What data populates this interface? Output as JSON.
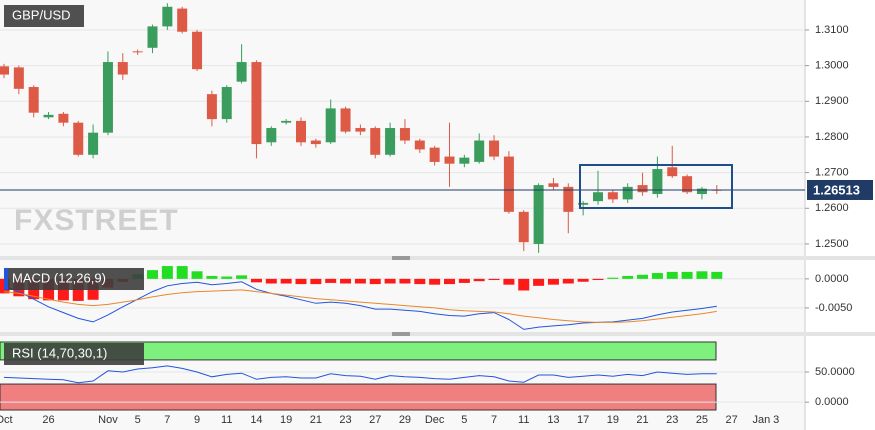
{
  "chart_data": [
    {
      "type": "candlestick",
      "title": "GBP/USD",
      "watermark": "FXSTREET",
      "categories": [
        "Oct",
        null,
        null,
        "26",
        null,
        null,
        null,
        "Nov",
        null,
        "5",
        null,
        "7",
        null,
        "9",
        null,
        "11",
        null,
        "14",
        null,
        "19",
        null,
        "21",
        null,
        "23",
        null,
        "27",
        null,
        "29",
        null,
        "Dec",
        null,
        "5",
        null,
        "7",
        null,
        "11",
        null,
        "13",
        null,
        "17",
        null,
        "19",
        null,
        "21",
        null,
        "23",
        null,
        "25",
        null,
        "27",
        null,
        "Jan",
        "3"
      ],
      "open": [
        1.2998,
        1.2995,
        1.294,
        1.2855,
        1.2865,
        1.284,
        1.275,
        1.2812,
        1.301,
        1.304,
        1.305,
        1.311,
        1.316,
        1.3095,
        1.292,
        1.285,
        1.2955,
        1.301,
        1.2785,
        1.284,
        1.2845,
        1.279,
        1.2785,
        1.288,
        1.2825,
        1.2825,
        1.275,
        1.2825,
        1.279,
        1.277,
        1.2745,
        1.2725,
        1.273,
        1.279,
        1.2745,
        1.259,
        1.25,
        1.267,
        1.266,
        1.261,
        1.262,
        1.2645,
        1.2625,
        1.2665,
        1.264,
        1.2715,
        1.269,
        1.264,
        1.2652,
        null,
        null,
        null,
        null
      ],
      "high": [
        1.3005,
        1.3,
        1.2945,
        1.287,
        1.287,
        1.2845,
        1.2835,
        1.304,
        1.3035,
        1.3045,
        1.3115,
        1.3175,
        1.3165,
        1.31,
        1.293,
        1.2945,
        1.306,
        1.3015,
        1.283,
        1.285,
        1.2855,
        1.2795,
        1.2905,
        1.2885,
        1.2835,
        1.283,
        1.284,
        1.285,
        1.2795,
        1.2775,
        1.284,
        1.275,
        1.281,
        1.2805,
        1.276,
        1.2595,
        1.267,
        1.2685,
        1.267,
        1.262,
        1.2705,
        1.265,
        1.267,
        1.27,
        1.2745,
        1.2775,
        1.2695,
        1.266,
        1.2665,
        null,
        null,
        null,
        null
      ],
      "low": [
        1.2965,
        1.292,
        1.2855,
        1.285,
        1.283,
        1.2745,
        1.274,
        1.2805,
        1.296,
        1.303,
        1.3035,
        1.31,
        1.309,
        1.2985,
        1.283,
        1.284,
        1.295,
        1.274,
        1.2775,
        1.2835,
        1.2775,
        1.277,
        1.278,
        1.281,
        1.2805,
        1.274,
        1.2745,
        1.278,
        1.2755,
        1.272,
        1.266,
        1.2715,
        1.2725,
        1.2735,
        1.2585,
        1.248,
        1.2475,
        1.265,
        1.253,
        1.258,
        1.261,
        1.2615,
        1.2615,
        1.2635,
        1.263,
        1.2685,
        1.264,
        1.2625,
        1.264,
        null,
        null,
        null,
        null
      ],
      "close": [
        1.2975,
        1.2935,
        1.2868,
        1.2862,
        1.284,
        1.275,
        1.2812,
        1.301,
        1.2975,
        1.3038,
        1.311,
        1.3165,
        1.3095,
        1.299,
        1.285,
        1.294,
        1.301,
        1.278,
        1.2825,
        1.2845,
        1.2785,
        1.278,
        1.288,
        1.2815,
        1.2815,
        1.275,
        1.2825,
        1.279,
        1.2765,
        1.273,
        1.2725,
        1.2742,
        1.279,
        1.2745,
        1.259,
        1.2505,
        1.2665,
        1.266,
        1.259,
        1.2615,
        1.2645,
        1.2625,
        1.266,
        1.2645,
        1.271,
        1.269,
        1.2645,
        1.2655,
        1.2651,
        null,
        null,
        null,
        null
      ],
      "up_color": "#3a9d5d",
      "down_color": "#dd5a47",
      "ylim": [
        1.2469,
        1.3184
      ],
      "yticks": [
        {
          "value": 1.31,
          "label": "1.3100"
        },
        {
          "value": 1.3,
          "label": "1.3000"
        },
        {
          "value": 1.29,
          "label": "1.2900"
        },
        {
          "value": 1.28,
          "label": "1.2800"
        },
        {
          "value": 1.27,
          "label": "1.2700"
        },
        {
          "value": 1.26,
          "label": "1.2600"
        },
        {
          "value": 1.25,
          "label": "1.2500"
        }
      ],
      "last_price": {
        "value": 1.26513,
        "label": "1.26513"
      }
    },
    {
      "type": "macd",
      "title": "MACD (12,26,9)",
      "histogram": [
        -0.0025,
        -0.003,
        -0.0035,
        -0.0037,
        -0.0037,
        -0.0038,
        -0.0036,
        -0.0015,
        -0.0005,
        0.0008,
        0.0015,
        0.0022,
        0.0022,
        0.0013,
        0.0005,
        0.0004,
        0.0006,
        -0.0006,
        -0.0008,
        -0.0008,
        -0.0009,
        -0.0009,
        -0.0007,
        -0.0008,
        -0.0008,
        -0.0009,
        -0.0008,
        -0.0008,
        -0.0009,
        -0.001,
        -0.0009,
        -0.0007,
        -0.0004,
        -0.0002,
        -0.001,
        -0.002,
        -0.0012,
        -0.001,
        -0.0008,
        -0.0005,
        -0.0002,
        0.0002,
        0.0005,
        0.0007,
        0.001,
        0.0012,
        0.0012,
        0.0013,
        0.0012,
        null,
        null,
        null,
        null
      ],
      "macd": [
        -0.0012,
        -0.0022,
        -0.0035,
        -0.0048,
        -0.0058,
        -0.0068,
        -0.0074,
        -0.0062,
        -0.0048,
        -0.0035,
        -0.0022,
        -0.0012,
        -0.0008,
        -0.0006,
        -0.001,
        -0.0008,
        -0.0005,
        -0.0018,
        -0.0025,
        -0.003,
        -0.0036,
        -0.0042,
        -0.004,
        -0.0042,
        -0.0046,
        -0.0052,
        -0.0052,
        -0.0054,
        -0.0056,
        -0.006,
        -0.0063,
        -0.0064,
        -0.006,
        -0.0058,
        -0.007,
        -0.0087,
        -0.0083,
        -0.0081,
        -0.0079,
        -0.0076,
        -0.0075,
        -0.0074,
        -0.0071,
        -0.0068,
        -0.0062,
        -0.0057,
        -0.0054,
        -0.0051,
        -0.0047,
        null,
        null,
        null,
        null
      ],
      "signal": [
        -0.0022,
        -0.0025,
        -0.003,
        -0.0035,
        -0.004,
        -0.0044,
        -0.0046,
        -0.0044,
        -0.004,
        -0.0036,
        -0.0031,
        -0.0027,
        -0.0024,
        -0.0022,
        -0.0021,
        -0.002,
        -0.0019,
        -0.0022,
        -0.0025,
        -0.0028,
        -0.0031,
        -0.0034,
        -0.0036,
        -0.0038,
        -0.004,
        -0.0042,
        -0.0044,
        -0.0046,
        -0.0048,
        -0.005,
        -0.0053,
        -0.0055,
        -0.0056,
        -0.0057,
        -0.006,
        -0.0064,
        -0.0067,
        -0.007,
        -0.0072,
        -0.0074,
        -0.0075,
        -0.0075,
        -0.0074,
        -0.0072,
        -0.0069,
        -0.0066,
        -0.0063,
        -0.006,
        -0.0056,
        null,
        null,
        null,
        null
      ],
      "histogram_up_color": "#22dd22",
      "histogram_down_color": "#ff1a1a",
      "macd_color": "#2255dd",
      "signal_color": "#e8882e",
      "ylim": [
        -0.0088,
        0.0029
      ],
      "yticks": [
        {
          "value": 0,
          "label": "0.0000"
        },
        {
          "value": -0.005,
          "label": "-0.0050"
        }
      ]
    },
    {
      "type": "rsi",
      "title": "RSI (14,70,30,1)",
      "values": [
        41,
        40,
        39,
        38,
        37,
        32,
        35,
        52,
        50,
        55,
        57,
        60,
        56,
        50,
        42,
        46,
        48,
        38,
        41,
        42,
        40,
        40,
        47,
        44,
        43,
        38,
        44,
        42,
        41,
        39,
        38,
        41,
        44,
        42,
        35,
        33,
        45,
        45,
        41,
        43,
        45,
        43,
        46,
        44,
        50,
        48,
        46,
        47,
        47,
        null,
        null,
        null,
        null
      ],
      "color": "#2255dd",
      "overbought": 70,
      "oversold": 30,
      "overbought_color": "#7ef07e",
      "oversold_color": "#f08080",
      "ylim": [
        -13,
        103
      ],
      "yticks": [
        {
          "value": 50,
          "label": "50.0000"
        },
        {
          "value": 0,
          "label": "0.0000"
        }
      ]
    }
  ]
}
